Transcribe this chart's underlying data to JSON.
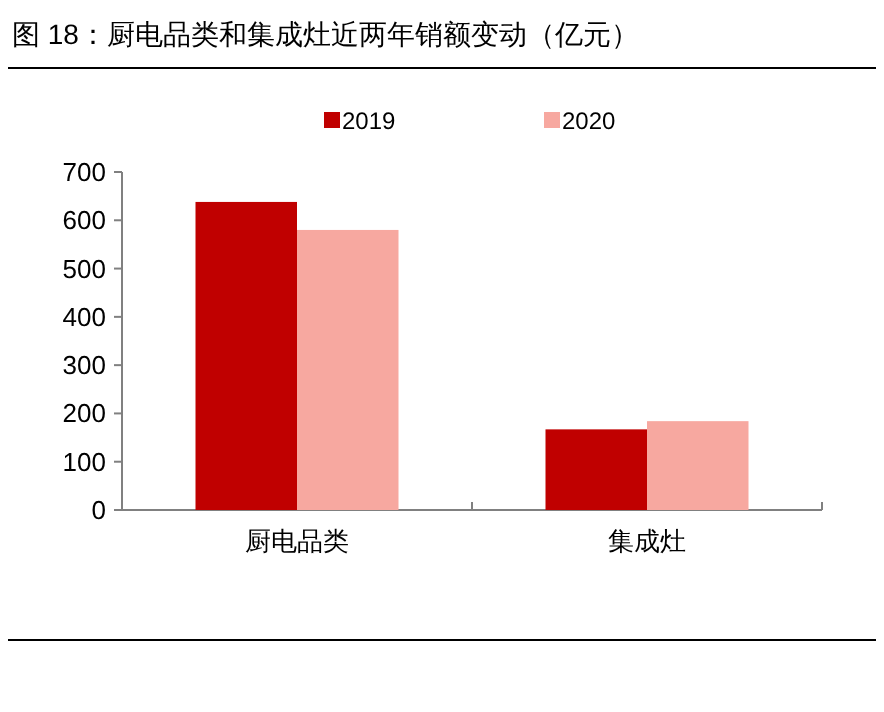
{
  "chart_data": {
    "type": "bar",
    "title": "图 18：厨电品类和集成灶近两年销额变动（亿元）",
    "categories": [
      "厨电品类",
      "集成灶"
    ],
    "series": [
      {
        "name": "2019",
        "color": "#c00000",
        "values": [
          638,
          167
        ]
      },
      {
        "name": "2020",
        "color": "#f7a8a0",
        "values": [
          580,
          184
        ]
      }
    ],
    "ylim": [
      0,
      700
    ],
    "yticks": [
      0,
      100,
      200,
      300,
      400,
      500,
      600,
      700
    ],
    "grid": false,
    "legend": "top"
  }
}
